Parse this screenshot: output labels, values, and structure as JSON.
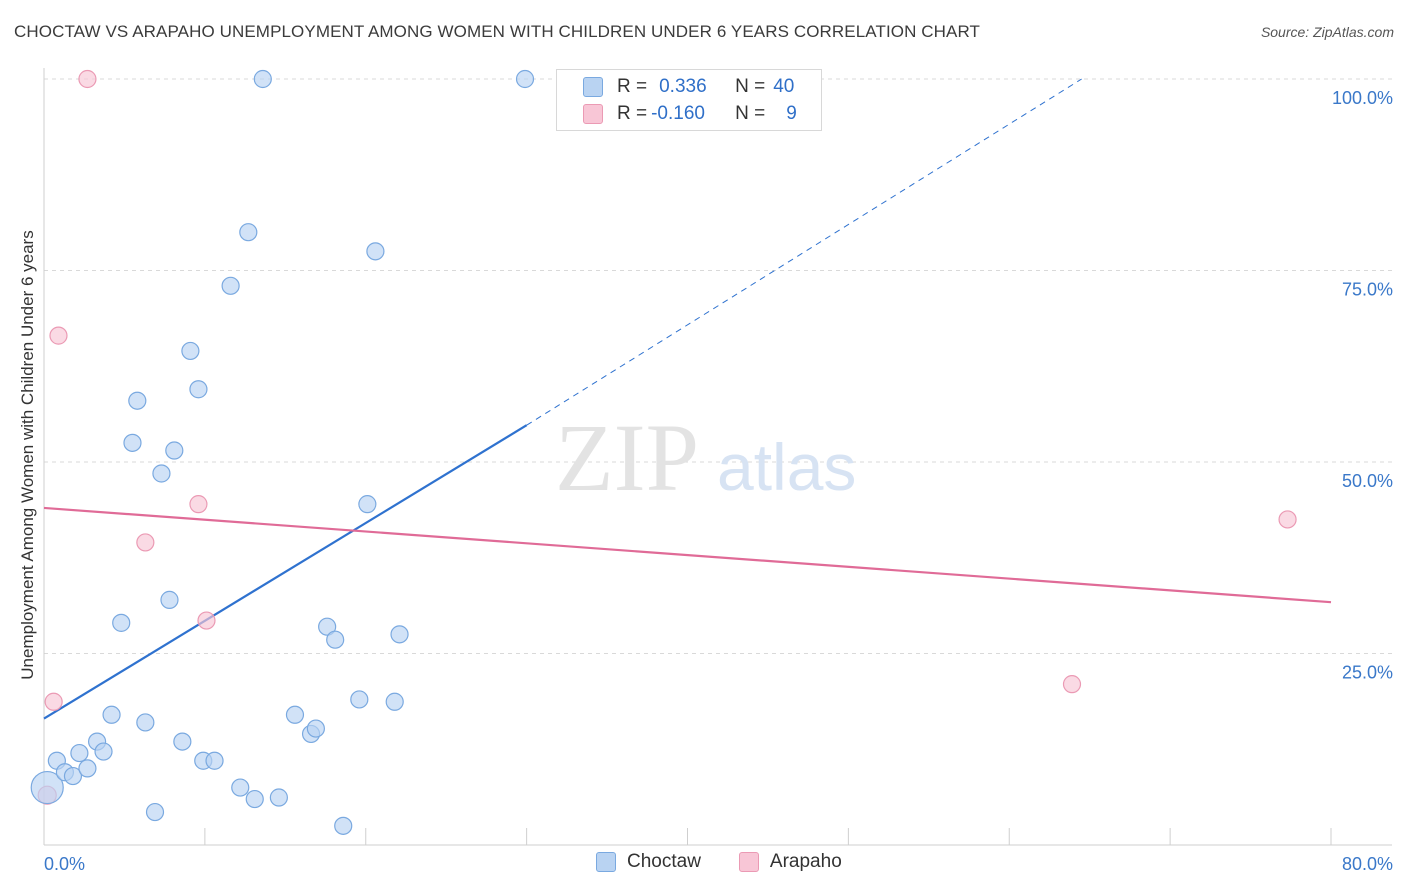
{
  "title": "CHOCTAW VS ARAPAHO UNEMPLOYMENT AMONG WOMEN WITH CHILDREN UNDER 6 YEARS CORRELATION CHART",
  "source": "Source: ZipAtlas.com",
  "watermark": {
    "zip": "ZIP",
    "atlas": "atlas"
  },
  "legend": {
    "rows": [
      {
        "r_label": "R =",
        "r_value": "0.336",
        "n_label": "N =",
        "n_value": "40"
      },
      {
        "r_label": "R =",
        "r_value": "-0.160",
        "n_label": "N =",
        "n_value": "9"
      }
    ]
  },
  "colors": {
    "choctaw_fill": "#b9d3f2",
    "choctaw_stroke": "#7aa9e0",
    "choctaw_line": "#2f72cf",
    "arapaho_fill": "#f8c6d6",
    "arapaho_stroke": "#eb9ab4",
    "arapaho_line": "#e06b97",
    "axis_text": "#3a78c9",
    "grid": "#d9d9d9"
  },
  "chart_data": {
    "type": "scatter",
    "title": "CHOCTAW VS ARAPAHO UNEMPLOYMENT AMONG WOMEN WITH CHILDREN UNDER 6 YEARS CORRELATION CHART",
    "xlabel": "",
    "ylabel": "Unemployment Among Women with Children Under 6 years",
    "xlim": [
      0,
      80
    ],
    "ylim": [
      0,
      100
    ],
    "x_tick_labels": [
      "0.0%",
      "80.0%"
    ],
    "y_tick_labels": [
      "25.0%",
      "50.0%",
      "75.0%",
      "100.0%"
    ],
    "y_ticks": [
      25,
      50,
      75,
      100
    ],
    "series": [
      {
        "name": "Choctaw",
        "points": [
          [
            0.2,
            7.5
          ],
          [
            0.8,
            11
          ],
          [
            1.3,
            9.5
          ],
          [
            1.8,
            9
          ],
          [
            2.2,
            12
          ],
          [
            2.7,
            10
          ],
          [
            3.3,
            13.5
          ],
          [
            3.7,
            12.2
          ],
          [
            4.2,
            17
          ],
          [
            4.8,
            29
          ],
          [
            5.5,
            52.5
          ],
          [
            5.8,
            58
          ],
          [
            6.3,
            16
          ],
          [
            6.9,
            4.3
          ],
          [
            7.3,
            48.5
          ],
          [
            7.8,
            32
          ],
          [
            8.1,
            51.5
          ],
          [
            8.6,
            13.5
          ],
          [
            9.1,
            64.5
          ],
          [
            9.6,
            59.5
          ],
          [
            9.9,
            11
          ],
          [
            10.6,
            11
          ],
          [
            11.6,
            73
          ],
          [
            12.2,
            7.5
          ],
          [
            12.7,
            80
          ],
          [
            13.1,
            6
          ],
          [
            13.6,
            100
          ],
          [
            14.6,
            6.2
          ],
          [
            15.6,
            17
          ],
          [
            16.6,
            14.5
          ],
          [
            16.9,
            15.2
          ],
          [
            17.6,
            28.5
          ],
          [
            18.1,
            26.8
          ],
          [
            18.6,
            2.5
          ],
          [
            19.6,
            19
          ],
          [
            20.1,
            44.5
          ],
          [
            20.6,
            77.5
          ],
          [
            21.8,
            18.7
          ],
          [
            22.1,
            27.5
          ],
          [
            29.9,
            100
          ]
        ],
        "trend": {
          "x0": 0,
          "y0": 16.5,
          "x1": 30,
          "y1": 54.8,
          "dashed_x1": 64.5,
          "dashed_y1": 100
        }
      },
      {
        "name": "Arapaho",
        "points": [
          [
            0.2,
            6.5
          ],
          [
            0.6,
            18.7
          ],
          [
            0.9,
            66.5
          ],
          [
            2.7,
            100
          ],
          [
            6.3,
            39.5
          ],
          [
            9.6,
            44.5
          ],
          [
            10.1,
            29.3
          ],
          [
            63.9,
            21
          ],
          [
            77.3,
            42.5
          ]
        ],
        "trend": {
          "x0": 0,
          "y0": 44,
          "x1": 80,
          "y1": 31.7
        }
      }
    ]
  }
}
